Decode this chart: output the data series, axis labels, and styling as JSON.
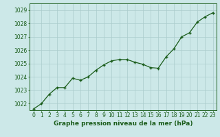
{
  "x": [
    0,
    1,
    2,
    3,
    4,
    5,
    6,
    7,
    8,
    9,
    10,
    11,
    12,
    13,
    14,
    15,
    16,
    17,
    18,
    19,
    20,
    21,
    22,
    23
  ],
  "y": [
    1021.6,
    1022.0,
    1022.7,
    1023.2,
    1023.2,
    1023.9,
    1023.75,
    1024.0,
    1024.5,
    1024.9,
    1025.2,
    1025.3,
    1025.3,
    1025.1,
    1024.95,
    1024.7,
    1024.65,
    1025.5,
    1026.1,
    1027.0,
    1027.3,
    1028.1,
    1028.5,
    1028.8
  ],
  "ylim": [
    1021.5,
    1029.5
  ],
  "xlim": [
    -0.5,
    23.5
  ],
  "yticks": [
    1022,
    1023,
    1024,
    1025,
    1026,
    1027,
    1028,
    1029
  ],
  "xticks": [
    0,
    1,
    2,
    3,
    4,
    5,
    6,
    7,
    8,
    9,
    10,
    11,
    12,
    13,
    14,
    15,
    16,
    17,
    18,
    19,
    20,
    21,
    22,
    23
  ],
  "line_color": "#1a5c1a",
  "marker_color": "#1a5c1a",
  "bg_color": "#cce8e8",
  "grid_color": "#aacccc",
  "xlabel": "Graphe pression niveau de la mer (hPa)",
  "xlabel_color": "#1a5c1a",
  "tick_color": "#1a5c1a",
  "axis_label_fontsize": 6.5,
  "tick_fontsize": 5.5,
  "marker": "+",
  "markersize": 3.5,
  "linewidth": 0.9
}
